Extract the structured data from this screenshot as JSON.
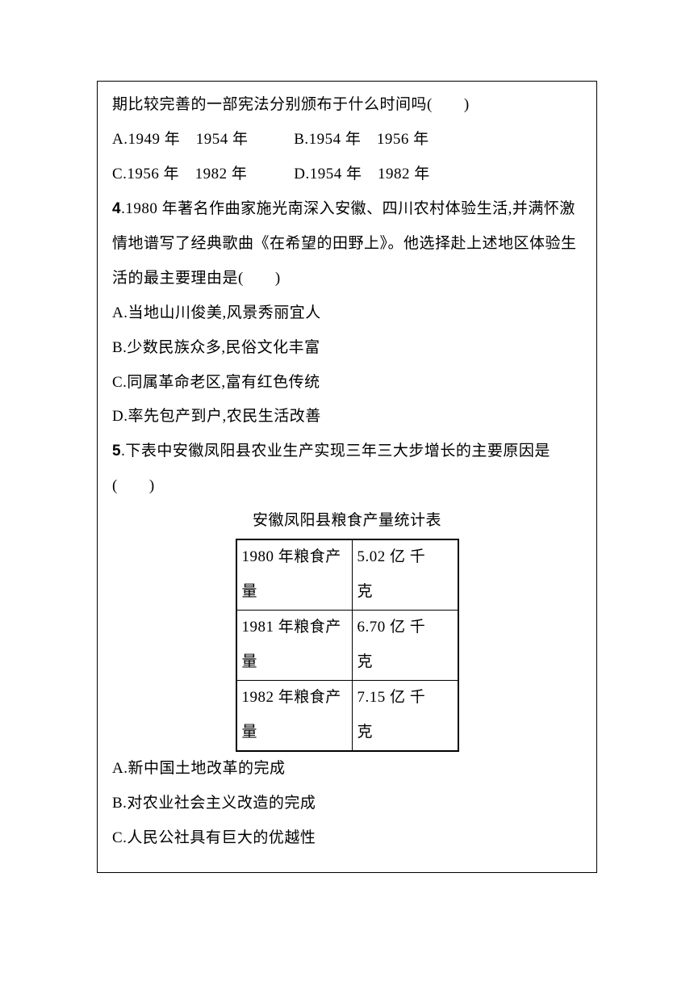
{
  "q3_fragment": {
    "line1": "期比较完善的一部宪法分别颁布于什么时间吗(　　)",
    "optA": "A.1949 年　1954 年",
    "optB": "B.1954 年　1956 年",
    "optC": "C.1956 年　1982 年",
    "optD": "D.1954 年　1982 年"
  },
  "q4": {
    "num": "4",
    "text_l1": ".1980 年著名作曲家施光南深入安徽、四川农村体验生活,并满怀激",
    "text_l2": "情地谱写了经典歌曲《在希望的田野上》。他选择赴上述地区体验生",
    "text_l3": "活的最主要理由是(　　)",
    "optA": "A.当地山川俊美,风景秀丽宜人",
    "optB": "B.少数民族众多,民俗文化丰富",
    "optC": "C.同属革命老区,富有红色传统",
    "optD": "D.率先包产到户,农民生活改善"
  },
  "q5": {
    "num": "5",
    "text_l1": ".下表中安徽凤阳县农业生产实现三年三大步增长的主要原因是",
    "text_l2": "(　　)",
    "table": {
      "title": "安徽凤阳县粮食产量统计表",
      "rows": [
        {
          "year_l1": "1980 年粮食产",
          "year_l2": "量",
          "amt_l1": "5.02 亿 千",
          "amt_l2": "克"
        },
        {
          "year_l1": "1981 年粮食产",
          "year_l2": "量",
          "amt_l1": "6.70 亿 千",
          "amt_l2": "克"
        },
        {
          "year_l1": "1982 年粮食产",
          "year_l2": "量",
          "amt_l1": "7.15 亿 千",
          "amt_l2": "克"
        }
      ],
      "colors": {
        "border": "#000000"
      }
    },
    "optA": "A.新中国土地改革的完成",
    "optB": "B.对农业社会主义改造的完成",
    "optC": "C.人民公社具有巨大的优越性"
  }
}
